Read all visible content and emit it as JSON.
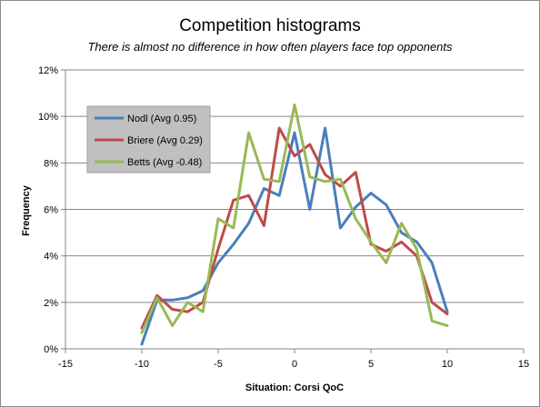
{
  "chart_data": {
    "type": "line",
    "title": "Competition histograms",
    "subtitle": "There is almost no difference in how often players face top opponents",
    "xlabel": "Situation: Corsi QoC",
    "ylabel": "Frequency",
    "xlim": [
      -15,
      15
    ],
    "ylim": [
      0,
      12
    ],
    "x_ticks": [
      -15,
      -10,
      -5,
      0,
      5,
      10,
      15
    ],
    "x_tick_labels": [
      "-15",
      "-10",
      "-5",
      "0",
      "5",
      "10",
      "15"
    ],
    "y_ticks": [
      0,
      2,
      4,
      6,
      8,
      10,
      12
    ],
    "y_tick_labels": [
      "0%",
      "2%",
      "4%",
      "6%",
      "8%",
      "10%",
      "12%"
    ],
    "grid": "horizontal",
    "legend_position": "top-left",
    "x": [
      -10,
      -9,
      -8,
      -7,
      -6,
      -5,
      -4,
      -3,
      -2,
      -1,
      0,
      1,
      2,
      3,
      4,
      5,
      6,
      7,
      8,
      9,
      10
    ],
    "series": [
      {
        "name": "Nodl (Avg 0.95)",
        "color": "#4a7ebb",
        "values": [
          0.2,
          2.1,
          2.1,
          2.2,
          2.5,
          3.7,
          4.5,
          5.4,
          6.9,
          6.6,
          9.3,
          6.0,
          9.5,
          5.2,
          6.1,
          6.7,
          6.2,
          5.0,
          4.6,
          3.7,
          1.6
        ]
      },
      {
        "name": "Briere (Avg 0.29)",
        "color": "#be4b48",
        "values": [
          0.9,
          2.3,
          1.7,
          1.6,
          2.0,
          4.3,
          6.4,
          6.6,
          5.3,
          9.5,
          8.3,
          8.8,
          7.5,
          7.0,
          7.6,
          4.5,
          4.2,
          4.6,
          4.0,
          2.0,
          1.5
        ]
      },
      {
        "name": "Betts (Avg -0.48)",
        "color": "#98b954",
        "values": [
          0.7,
          2.2,
          1.0,
          2.0,
          1.6,
          5.6,
          5.2,
          9.3,
          7.3,
          7.2,
          10.5,
          7.4,
          7.2,
          7.3,
          5.6,
          4.6,
          3.7,
          5.4,
          4.3,
          1.2,
          1.0
        ]
      }
    ]
  }
}
